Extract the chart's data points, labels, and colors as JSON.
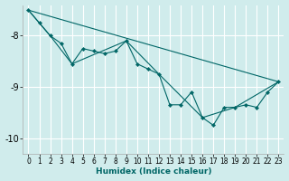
{
  "xlabel": "Humidex (Indice chaleur)",
  "bg_color": "#d0ecec",
  "grid_color": "#ffffff",
  "line_color": "#006666",
  "xlim": [
    -0.5,
    23.5
  ],
  "ylim": [
    -10.3,
    -7.4
  ],
  "yticks": [
    -10,
    -9,
    -8
  ],
  "xticks": [
    0,
    1,
    2,
    3,
    4,
    5,
    6,
    7,
    8,
    9,
    10,
    11,
    12,
    13,
    14,
    15,
    16,
    17,
    18,
    19,
    20,
    21,
    22,
    23
  ],
  "series1_x": [
    0,
    1,
    2,
    3,
    4,
    5,
    6,
    7,
    8,
    9,
    10,
    11,
    12,
    13,
    14,
    15,
    16,
    17,
    18,
    19,
    20,
    21,
    22,
    23
  ],
  "series1_y": [
    -7.5,
    -7.75,
    -8.0,
    -8.15,
    -8.55,
    -8.25,
    -8.3,
    -8.35,
    -8.3,
    -8.1,
    -8.55,
    -8.65,
    -8.75,
    -9.35,
    -9.35,
    -9.1,
    -9.6,
    -9.75,
    -9.4,
    -9.4,
    -9.35,
    -9.4,
    -9.1,
    -8.9
  ],
  "trend_x": [
    0,
    23
  ],
  "trend_y": [
    -7.5,
    -8.9
  ],
  "envelope_x": [
    0,
    2,
    4,
    9,
    12,
    16,
    19,
    23
  ],
  "envelope_y": [
    -7.5,
    -8.0,
    -8.55,
    -8.1,
    -8.75,
    -9.6,
    -9.4,
    -8.9
  ]
}
